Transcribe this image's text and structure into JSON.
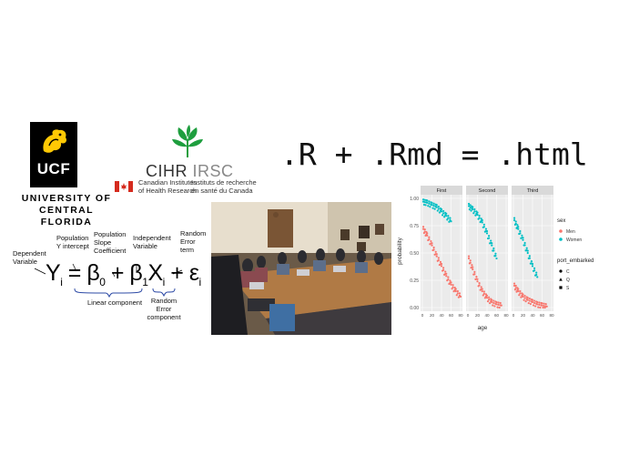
{
  "ucf": {
    "badge": "UCF",
    "name_line1": "UNIVERSITY OF",
    "name_line2": "CENTRAL FLORIDA"
  },
  "cihr": {
    "title_en": "CIHR",
    "title_fr": "IRSC",
    "en_line1": "Canadian Institutes",
    "en_line2": "of Health Research",
    "fr_line1": "Instituts de recherche",
    "fr_line2": "en santé du Canada"
  },
  "headline": ".R + .Rmd = .html",
  "equation": {
    "labels": {
      "dependent": [
        "Dependent",
        "Variable"
      ],
      "intercept": [
        "Population",
        "Y intercept"
      ],
      "slope": [
        "Population",
        "Slope",
        "Coefficient"
      ],
      "independent": [
        "Independent",
        "Variable"
      ],
      "random_error": [
        "Random",
        "Error",
        "term"
      ],
      "linear_component": "Linear component",
      "random_component": [
        "Random Error",
        "component"
      ]
    }
  },
  "colors": {
    "men": "#F8766D",
    "women": "#00BFC4",
    "panel_bg": "#EBEBEB",
    "strip_bg": "#D9D9D9"
  },
  "chart_data": {
    "type": "scatter",
    "facets": [
      "First",
      "Second",
      "Third"
    ],
    "xlabel": "age",
    "ylabel": "probability",
    "x_ticks": [
      "0",
      "20",
      "40",
      "60",
      "80"
    ],
    "y_ticks": [
      "0.00",
      "0.25",
      "0.50",
      "0.75",
      "1.00"
    ],
    "xlim": [
      0,
      80
    ],
    "ylim": [
      0,
      1
    ],
    "grid": true,
    "legend": {
      "sex_title": "sex",
      "sex_items": [
        "Men",
        "Women"
      ],
      "port_title": "port_embarked",
      "port_items": [
        "C",
        "Q",
        "S"
      ],
      "placement": "right"
    },
    "series": [
      {
        "name": "Men",
        "panel": "First",
        "x": [
          2,
          10,
          20,
          30,
          40,
          50,
          60,
          70,
          80
        ],
        "y": [
          0.72,
          0.66,
          0.57,
          0.47,
          0.38,
          0.29,
          0.21,
          0.15,
          0.1
        ]
      },
      {
        "name": "Women",
        "panel": "First",
        "x": [
          2,
          10,
          20,
          30,
          40,
          50,
          60
        ],
        "y": [
          0.97,
          0.96,
          0.94,
          0.92,
          0.88,
          0.84,
          0.79
        ]
      },
      {
        "name": "Men",
        "panel": "Second",
        "x": [
          2,
          10,
          20,
          30,
          40,
          50,
          60,
          70
        ],
        "y": [
          0.45,
          0.35,
          0.24,
          0.15,
          0.09,
          0.05,
          0.03,
          0.02
        ]
      },
      {
        "name": "Women",
        "panel": "Second",
        "x": [
          2,
          10,
          20,
          30,
          40,
          50,
          60
        ],
        "y": [
          0.93,
          0.9,
          0.85,
          0.78,
          0.68,
          0.57,
          0.45
        ]
      },
      {
        "name": "Men",
        "panel": "Third",
        "x": [
          2,
          10,
          20,
          30,
          40,
          50,
          60,
          70
        ],
        "y": [
          0.2,
          0.15,
          0.1,
          0.07,
          0.05,
          0.03,
          0.02,
          0.01
        ]
      },
      {
        "name": "Women",
        "panel": "Third",
        "x": [
          2,
          10,
          20,
          30,
          40,
          50
        ],
        "y": [
          0.8,
          0.72,
          0.62,
          0.5,
          0.38,
          0.28
        ]
      }
    ]
  }
}
